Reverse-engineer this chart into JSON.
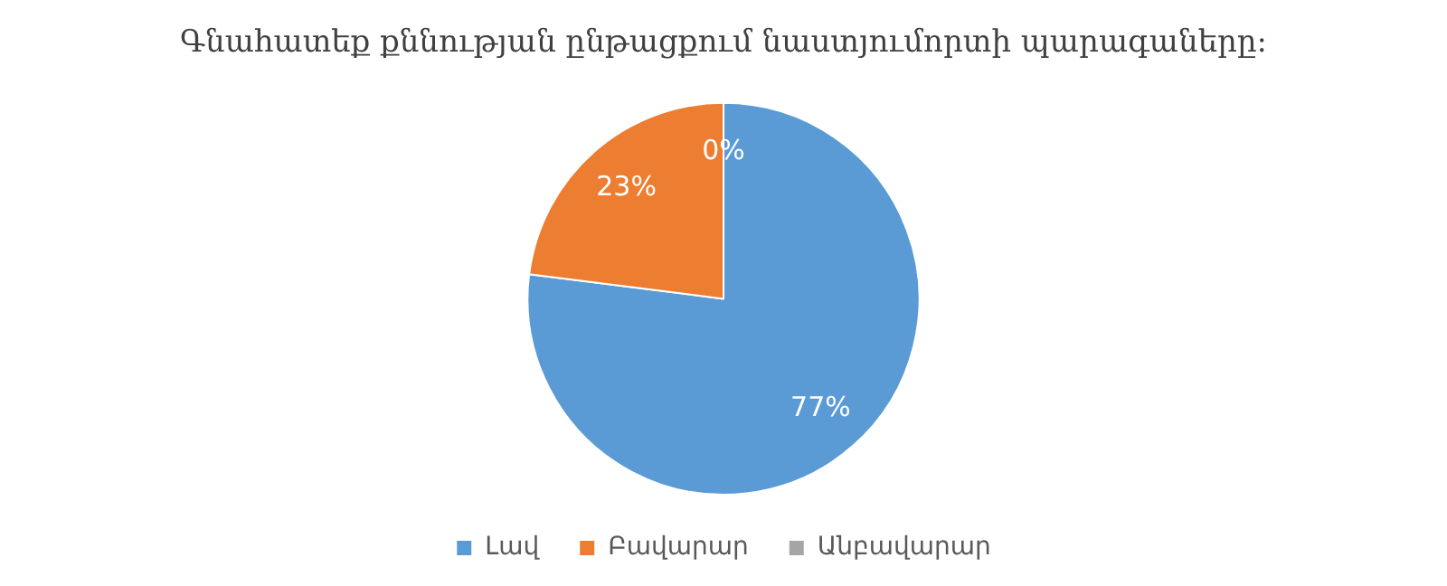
{
  "chart_data": {
    "type": "pie",
    "title": "Գնահատեք քննության ընթացքում նաստյումորտի պարագաները:",
    "categories": [
      "Լավ",
      "Բավարար",
      "Անբավարար"
    ],
    "values": [
      77,
      23,
      0
    ],
    "colors": [
      "#5b9bd5",
      "#ed7d31",
      "#a5a5a5"
    ],
    "value_labels": [
      "77%",
      "23%",
      "0%"
    ],
    "legend": "bottom"
  }
}
